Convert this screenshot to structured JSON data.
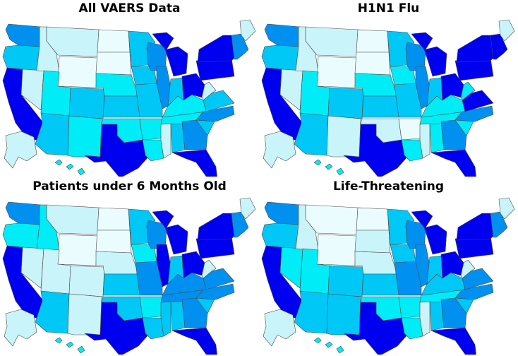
{
  "colors": {
    "c1": "#eafcfe",
    "c2": "#c8f4fa",
    "c3": "#00ecf6",
    "c4": "#00c8f6",
    "c5": "#0090f0",
    "c6": "#0000f0",
    "outline": "#4a4a4a"
  },
  "maps": [
    {
      "title": "All VAERS Data",
      "levels": {
        "WA": 5,
        "OR": 4,
        "CA": 6,
        "NV": 2,
        "ID": 2,
        "MT": 2,
        "WY": 1,
        "UT": 3,
        "AZ": 4,
        "CO": 4,
        "NM": 3,
        "ND": 1,
        "SD": 1,
        "NE": 3,
        "KS": 4,
        "OK": 3,
        "TX": 6,
        "MN": 4,
        "IA": 4,
        "MO": 4,
        "AR": 3,
        "LA": 3,
        "WI": 5,
        "IL": 5,
        "MS": 2,
        "AL": 4,
        "TN": 3,
        "KY": 3,
        "IN": 4,
        "MI": 6,
        "OH": 6,
        "GA": 5,
        "FL": 6,
        "SC": 4,
        "NC": 5,
        "VA": 4,
        "WV": 2,
        "PA": 6,
        "NY": 6,
        "NE6": 5,
        "ME": 2,
        "AK": 2,
        "HI": 3
      }
    },
    {
      "title": "H1N1 Flu",
      "levels": {
        "WA": 5,
        "OR": 4,
        "CA": 6,
        "NV": 2,
        "ID": 2,
        "MT": 2,
        "WY": 1,
        "UT": 3,
        "AZ": 4,
        "CO": 4,
        "NM": 2,
        "ND": 1,
        "SD": 1,
        "NE": 3,
        "KS": 4,
        "OK": 2,
        "TX": 6,
        "MN": 4,
        "IA": 3,
        "MO": 4,
        "AR": 1,
        "LA": 3,
        "WI": 5,
        "IL": 5,
        "MS": 2,
        "AL": 3,
        "TN": 3,
        "KY": 3,
        "IN": 4,
        "MI": 6,
        "OH": 6,
        "GA": 5,
        "FL": 6,
        "SC": 3,
        "NC": 5,
        "VA": 6,
        "WV": 3,
        "PA": 6,
        "NY": 6,
        "NE6": 6,
        "ME": 2,
        "AK": 2,
        "HI": 3
      }
    },
    {
      "title": "Patients under 6 Months Old",
      "levels": {
        "WA": 5,
        "OR": 3,
        "CA": 6,
        "NV": 2,
        "ID": 3,
        "MT": 2,
        "WY": 1,
        "UT": 2,
        "AZ": 4,
        "CO": 2,
        "NM": 2,
        "ND": 1,
        "SD": 1,
        "NE": 2,
        "KS": 4,
        "OK": 4,
        "TX": 6,
        "MN": 4,
        "IA": 3,
        "MO": 5,
        "AR": 3,
        "LA": 4,
        "WI": 5,
        "IL": 6,
        "MS": 4,
        "AL": 4,
        "TN": 5,
        "KY": 5,
        "IN": 4,
        "MI": 6,
        "OH": 6,
        "GA": 5,
        "FL": 6,
        "SC": 4,
        "NC": 5,
        "VA": 5,
        "WV": 2,
        "PA": 6,
        "NY": 6,
        "NE6": 5,
        "ME": 2,
        "AK": 2,
        "HI": 3
      }
    },
    {
      "title": "Life-Threatening",
      "levels": {
        "WA": 5,
        "OR": 4,
        "CA": 6,
        "NV": 3,
        "ID": 2,
        "MT": 1,
        "WY": 1,
        "UT": 3,
        "AZ": 4,
        "CO": 4,
        "NM": 4,
        "ND": 1,
        "SD": 2,
        "NE": 2,
        "KS": 4,
        "OK": 3,
        "TX": 6,
        "MN": 4,
        "IA": 4,
        "MO": 5,
        "AR": 3,
        "LA": 3,
        "WI": 5,
        "IL": 5,
        "MS": 2,
        "AL": 4,
        "TN": 3,
        "KY": 4,
        "IN": 4,
        "MI": 6,
        "OH": 6,
        "GA": 5,
        "FL": 6,
        "SC": 4,
        "NC": 5,
        "VA": 5,
        "WV": 2,
        "PA": 6,
        "NY": 6,
        "NE6": 5,
        "ME": 2,
        "AK": 2,
        "HI": 3
      }
    }
  ]
}
